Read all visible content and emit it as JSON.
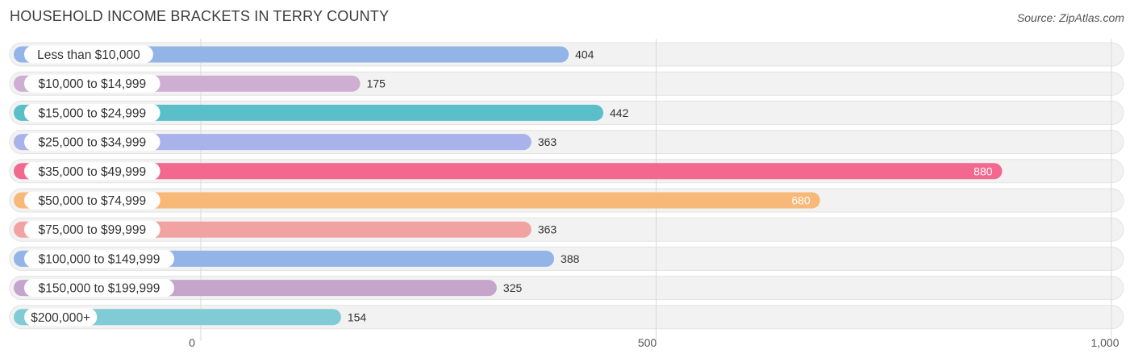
{
  "title": "HOUSEHOLD INCOME BRACKETS IN TERRY COUNTY",
  "source": "Source: ZipAtlas.com",
  "chart_data": {
    "type": "bar",
    "orientation": "horizontal",
    "title": "HOUSEHOLD INCOME BRACKETS IN TERRY COUNTY",
    "categories": [
      "Less than $10,000",
      "$10,000 to $14,999",
      "$15,000 to $24,999",
      "$25,000 to $34,999",
      "$35,000 to $49,999",
      "$50,000 to $74,999",
      "$75,000 to $99,999",
      "$100,000 to $149,999",
      "$150,000 to $199,999",
      "$200,000+"
    ],
    "values": [
      404,
      175,
      442,
      363,
      880,
      680,
      363,
      388,
      325,
      154
    ],
    "value_labels": [
      "404",
      "175",
      "442",
      "363",
      "880",
      "680",
      "363",
      "388",
      "325",
      "154"
    ],
    "colors": [
      "#92b4e6",
      "#cfaed3",
      "#5bbfca",
      "#a9b2ea",
      "#f2688f",
      "#f8b878",
      "#f1a3a3",
      "#92b4e6",
      "#c5a5cc",
      "#80cbd4"
    ],
    "xlim": [
      0,
      1000
    ],
    "xticks": [
      0,
      500,
      1000
    ],
    "xtick_labels": [
      "0",
      "500",
      "1,000"
    ],
    "xlabel": "",
    "ylabel": "",
    "grid": true,
    "legend": "none"
  }
}
